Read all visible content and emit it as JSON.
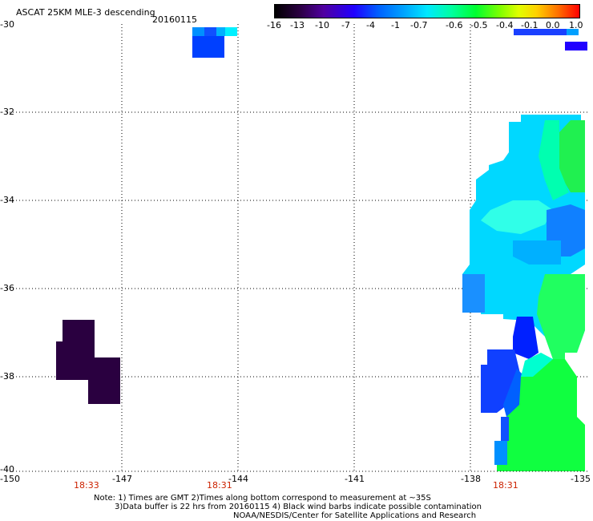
{
  "header": {
    "title": "ASCAT 25KM MLE-3 descending",
    "date": "20160115"
  },
  "colorbar": {
    "labels": [
      "-16",
      "-13",
      "-10",
      "-7",
      "-4",
      "-1",
      "-0.7",
      "-0.6",
      "-0.5",
      "-0.4",
      "-0.1",
      "0.0",
      "1.0"
    ],
    "colors": [
      "#000000",
      "#30004a",
      "#6a00c8",
      "#0020ff",
      "#0070ff",
      "#00c0ff",
      "#00ffe0",
      "#00ff60",
      "#40ff00",
      "#b0ff00",
      "#ffff00",
      "#ff9000",
      "#ff0000"
    ]
  },
  "axes": {
    "x_ticks": [
      "-150",
      "-147",
      "-144",
      "-141",
      "-138",
      "-135"
    ],
    "y_ticks": [
      "-30",
      "-32",
      "-34",
      "-36",
      "-38",
      "-40"
    ],
    "time_labels": [
      "18:33",
      "18:31",
      "18:31"
    ]
  },
  "notes": {
    "line1": "Note: 1) Times are GMT 2)Times along bottom correspond to measurement at ~35S",
    "line2": "3)Data buffer is 22 hrs from 20160115 4) Black wind barbs indicate possible contamination",
    "line3": "NOAA/NESDIS/Center for Satellite Applications and Research"
  }
}
